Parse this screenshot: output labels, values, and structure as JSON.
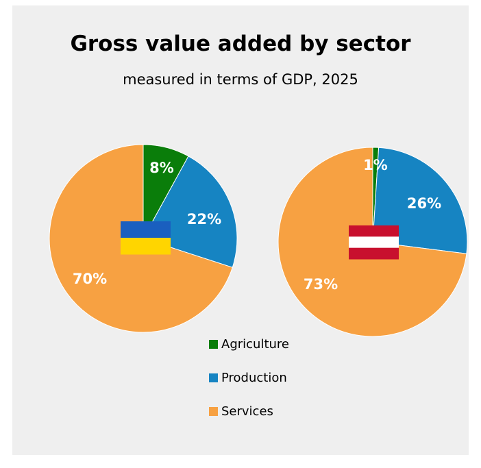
{
  "chart_data": {
    "type": "pie",
    "title": "Gross value added by sector",
    "subtitle": "measured in terms of GDP, 2025",
    "categories": [
      "Agriculture",
      "Production",
      "Services"
    ],
    "colors": {
      "Agriculture": "#0a7d0a",
      "Production": "#1684c2",
      "Services": "#f7a142"
    },
    "pies": [
      {
        "flag": "ukraine-flag",
        "values": [
          8,
          22,
          70
        ],
        "labels": [
          "8%",
          "22%",
          "70%"
        ],
        "flag_colors": [
          "#1a5fbf",
          "#ffd500"
        ]
      },
      {
        "flag": "austria-flag",
        "values": [
          1,
          26,
          73
        ],
        "labels": [
          "1%",
          "26%",
          "73%"
        ],
        "flag_colors": [
          "#c8102e",
          "#ffffff",
          "#c8102e"
        ]
      }
    ],
    "legend_position": "bottom-center"
  }
}
